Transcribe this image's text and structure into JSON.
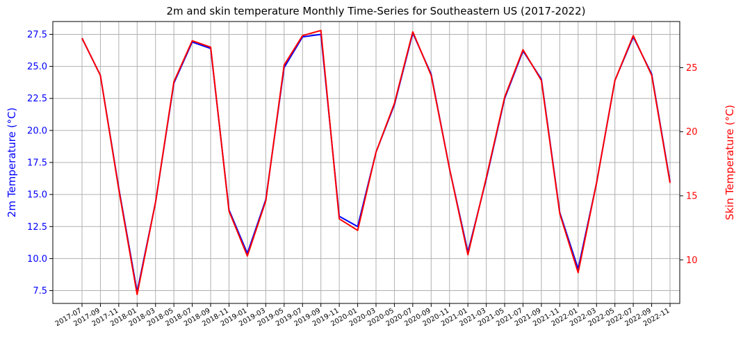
{
  "chart_data": {
    "type": "line",
    "title": "2m and skin temperature Monthly Time-Series for Southeastern US (2017-2022)",
    "ylabel_left": "2m Temperature (°C)",
    "ylabel_right": "Skin Temperature (°C)",
    "xlabel": "",
    "ylim_left": [
      6.5,
      28.5
    ],
    "ylim_right": [
      6.6,
      28.6
    ],
    "left_ticks": [
      "7.5",
      "10.0",
      "12.5",
      "15.0",
      "17.5",
      "20.0",
      "22.5",
      "25.0",
      "27.5"
    ],
    "right_ticks": [
      "10",
      "15",
      "20",
      "25"
    ],
    "grid": true,
    "x": [
      "2017-07",
      "2017-09",
      "2017-11",
      "2018-01",
      "2018-03",
      "2018-05",
      "2018-07",
      "2018-09",
      "2018-11",
      "2019-01",
      "2019-03",
      "2019-05",
      "2019-07",
      "2019-09",
      "2019-11",
      "2020-01",
      "2020-03",
      "2020-05",
      "2020-07",
      "2020-09",
      "2020-11",
      "2021-01",
      "2021-03",
      "2021-05",
      "2021-07",
      "2021-09",
      "2021-11",
      "2022-01",
      "2022-03",
      "2022-05",
      "2022-07",
      "2022-09",
      "2022-11"
    ],
    "series": [
      {
        "axis": "left",
        "color": "#0000ff",
        "values": [
          27.2,
          24.3,
          15.5,
          7.4,
          14.4,
          23.7,
          26.9,
          26.4,
          13.8,
          10.4,
          14.6,
          24.9,
          27.3,
          27.5,
          13.3,
          12.5,
          18.3,
          22.0,
          27.6,
          24.4,
          17.0,
          10.5,
          16.2,
          22.5,
          26.2,
          24.0,
          13.6,
          9.2,
          15.9,
          23.9,
          27.3,
          24.4,
          16.0
        ]
      },
      {
        "axis": "right",
        "color": "#ff0000",
        "values": [
          27.3,
          24.4,
          15.5,
          7.3,
          14.5,
          23.9,
          27.1,
          26.6,
          13.8,
          10.3,
          14.6,
          25.2,
          27.5,
          27.9,
          13.2,
          12.3,
          18.4,
          22.2,
          27.8,
          24.4,
          17.1,
          10.4,
          16.4,
          22.7,
          26.4,
          24.0,
          13.6,
          9.0,
          16.0,
          24.0,
          27.5,
          24.4,
          16.0
        ]
      }
    ],
    "colors": {
      "left_axis": "#0000ff",
      "right_axis": "#ff0000",
      "grid": "#b0b0b0",
      "frame": "#000000"
    }
  }
}
